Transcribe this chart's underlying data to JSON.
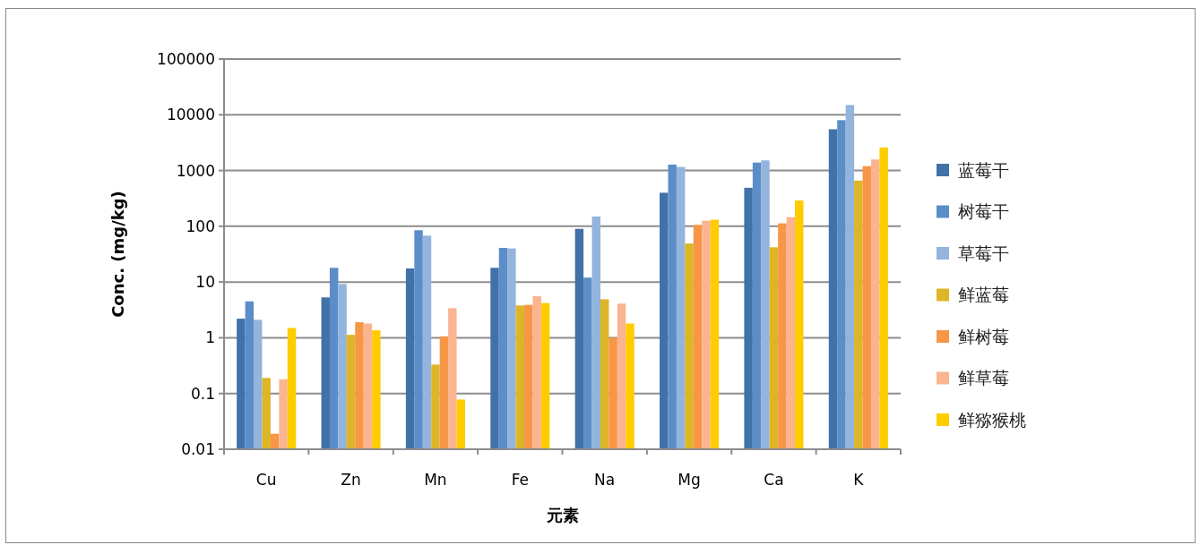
{
  "chart_data": {
    "type": "bar",
    "xlabel": "元素",
    "ylabel": "Conc. (mg/kg)",
    "categories": [
      "Cu",
      "Zn",
      "Mn",
      "Fe",
      "Na",
      "Mg",
      "Ca",
      "K"
    ],
    "series": [
      {
        "name": "蓝莓干",
        "color": "#4072a8",
        "values": [
          2.2,
          5.3,
          17.5,
          18,
          90,
          400,
          490,
          5500
        ]
      },
      {
        "name": "树莓干",
        "color": "#5b8dc8",
        "values": [
          4.5,
          18,
          85,
          41,
          12,
          1280,
          1390,
          8000
        ]
      },
      {
        "name": "草莓干",
        "color": "#93b4dc",
        "values": [
          2.1,
          9.2,
          68,
          40,
          150,
          1160,
          1520,
          15000
        ]
      },
      {
        "name": "鲜蓝莓",
        "color": "#ddb526",
        "values": [
          0.19,
          1.13,
          0.33,
          3.8,
          4.9,
          49,
          42,
          660
        ]
      },
      {
        "name": "鲜树莓",
        "color": "#f79646",
        "values": [
          0.019,
          1.9,
          1.06,
          3.9,
          1.0,
          106,
          113,
          1200
        ]
      },
      {
        "name": "鲜草莓",
        "color": "#fab590",
        "values": [
          0.18,
          1.8,
          3.4,
          5.6,
          4.1,
          126,
          146,
          1580
        ]
      },
      {
        "name": "鲜猕猴桃",
        "color": "#ffcc00",
        "values": [
          1.5,
          1.36,
          0.078,
          4.2,
          1.8,
          131,
          290,
          2600
        ]
      }
    ],
    "log": "y",
    "ylim": [
      0.01,
      100000
    ],
    "yticks": [
      0.01,
      0.1,
      1,
      10,
      100,
      1000,
      10000,
      100000
    ],
    "grid": "y",
    "legend": "right"
  }
}
